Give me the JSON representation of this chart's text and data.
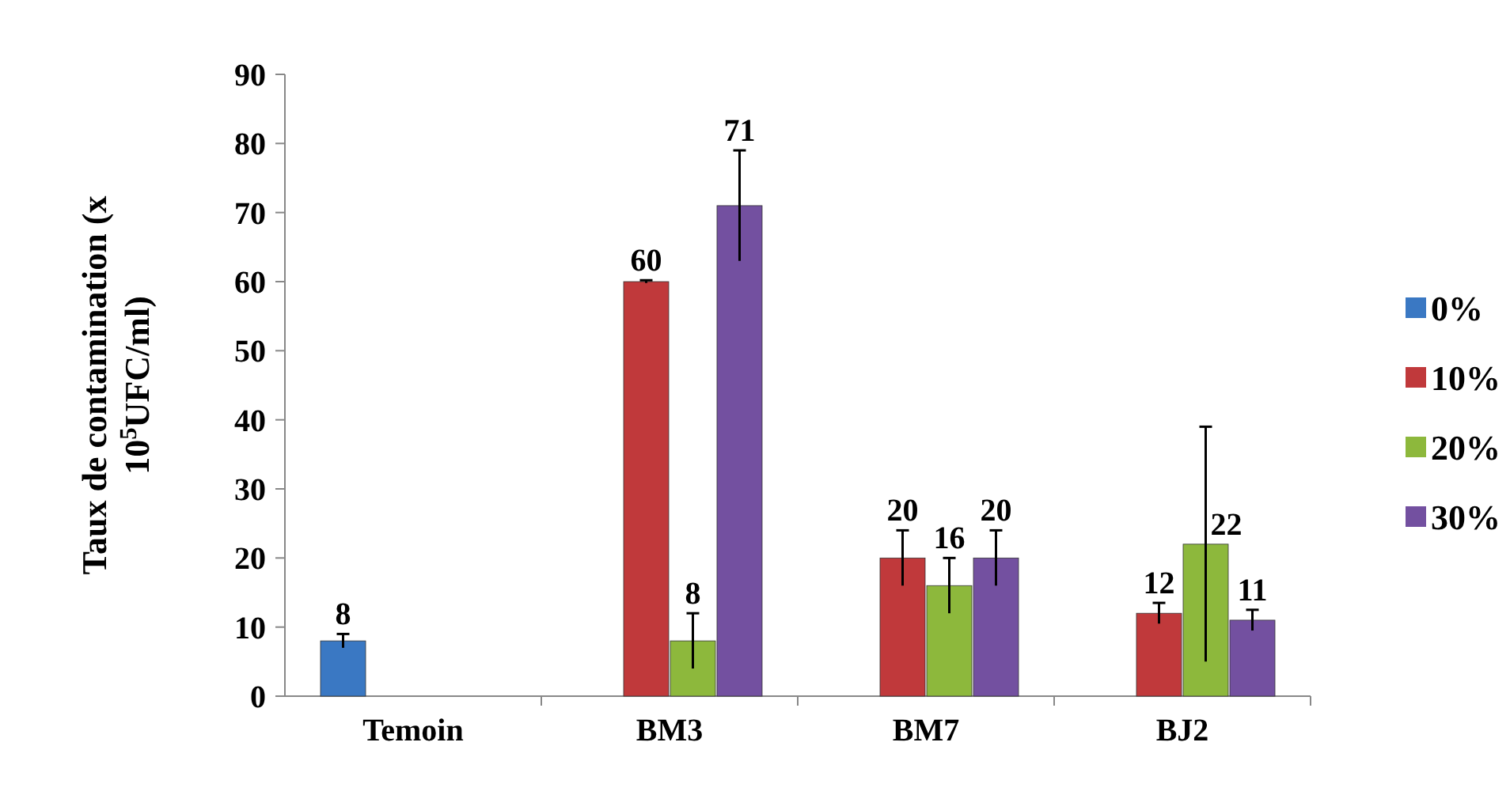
{
  "chart_data": {
    "type": "bar",
    "ylabel": "Taux de contamination (x 10$^{5}$UFC/ml)",
    "categories": [
      "Temoin",
      "BM3",
      "BM7",
      "BJ2"
    ],
    "series": [
      {
        "name": "0%",
        "color": "#3a78c3",
        "values": [
          8,
          null,
          null,
          null
        ],
        "errors": [
          1,
          null,
          null,
          null
        ]
      },
      {
        "name": "10%",
        "color": "#c0393b",
        "values": [
          null,
          60,
          20,
          12
        ],
        "errors": [
          null,
          0.2,
          4,
          1.5
        ]
      },
      {
        "name": "20%",
        "color": "#8db83c",
        "values": [
          null,
          8,
          16,
          22
        ],
        "errors": [
          null,
          4,
          4,
          17
        ]
      },
      {
        "name": "30%",
        "color": "#7350a0",
        "values": [
          null,
          71,
          20,
          11
        ],
        "errors": [
          null,
          8,
          4,
          1.5
        ]
      }
    ],
    "ylim": [
      0,
      90
    ],
    "yticks": [
      0,
      10,
      20,
      30,
      40,
      50,
      60,
      70,
      80,
      90
    ],
    "data_labels": true,
    "legend": "right",
    "grid": false
  }
}
